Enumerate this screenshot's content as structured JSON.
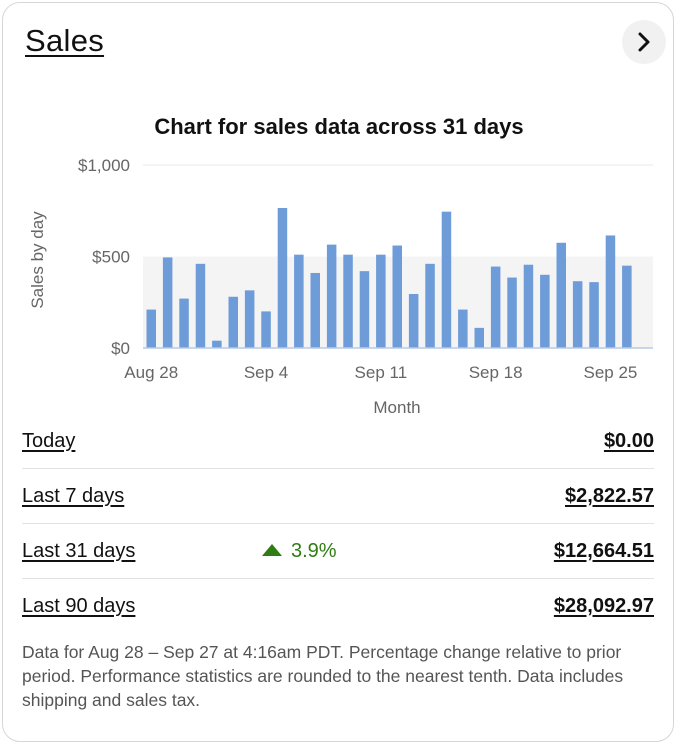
{
  "header": {
    "title": "Sales"
  },
  "icons": {
    "nav": "chevron-right-icon",
    "change": "triangle-up-icon"
  },
  "colors": {
    "bar": "#6e9cd9",
    "positive": "#2e7d13",
    "band": "#f4f4f4"
  },
  "chart_data": {
    "type": "bar",
    "title": "Chart for sales data across 31 days",
    "xlabel": "Month",
    "ylabel": "Sales by day",
    "ylim": [
      0,
      1000
    ],
    "yticks": [
      "$0",
      "$500",
      "$1,000"
    ],
    "ytick_values": [
      0,
      500,
      1000
    ],
    "xtick_labels": [
      "Aug 28",
      "Sep 4",
      "Sep 11",
      "Sep 18",
      "Sep 25"
    ],
    "xtick_indices": [
      0,
      7,
      14,
      21,
      28
    ],
    "categories": [
      "Aug 28",
      "Aug 29",
      "Aug 30",
      "Aug 31",
      "Sep 1",
      "Sep 2",
      "Sep 3",
      "Sep 4",
      "Sep 5",
      "Sep 6",
      "Sep 7",
      "Sep 8",
      "Sep 9",
      "Sep 10",
      "Sep 11",
      "Sep 12",
      "Sep 13",
      "Sep 14",
      "Sep 15",
      "Sep 16",
      "Sep 17",
      "Sep 18",
      "Sep 19",
      "Sep 20",
      "Sep 21",
      "Sep 22",
      "Sep 23",
      "Sep 24",
      "Sep 25",
      "Sep 26",
      "Sep 27"
    ],
    "values": [
      210,
      495,
      270,
      460,
      40,
      280,
      315,
      200,
      765,
      510,
      410,
      565,
      510,
      420,
      510,
      560,
      295,
      460,
      745,
      210,
      110,
      445,
      385,
      455,
      400,
      575,
      365,
      360,
      615,
      450,
      0
    ],
    "grid": true
  },
  "rows": [
    {
      "label": "Today",
      "value": "$0.00",
      "change": ""
    },
    {
      "label": "Last 7 days",
      "value": "$2,822.57",
      "change": ""
    },
    {
      "label": "Last 31 days",
      "value": "$12,664.51",
      "change": "3.9%"
    },
    {
      "label": "Last 90 days",
      "value": "$28,092.97",
      "change": ""
    }
  ],
  "footnote": "Data for Aug 28 – Sep 27 at 4:16am PDT. Percentage change relative to prior period. Performance statistics are rounded to the nearest tenth. Data includes shipping and sales tax."
}
